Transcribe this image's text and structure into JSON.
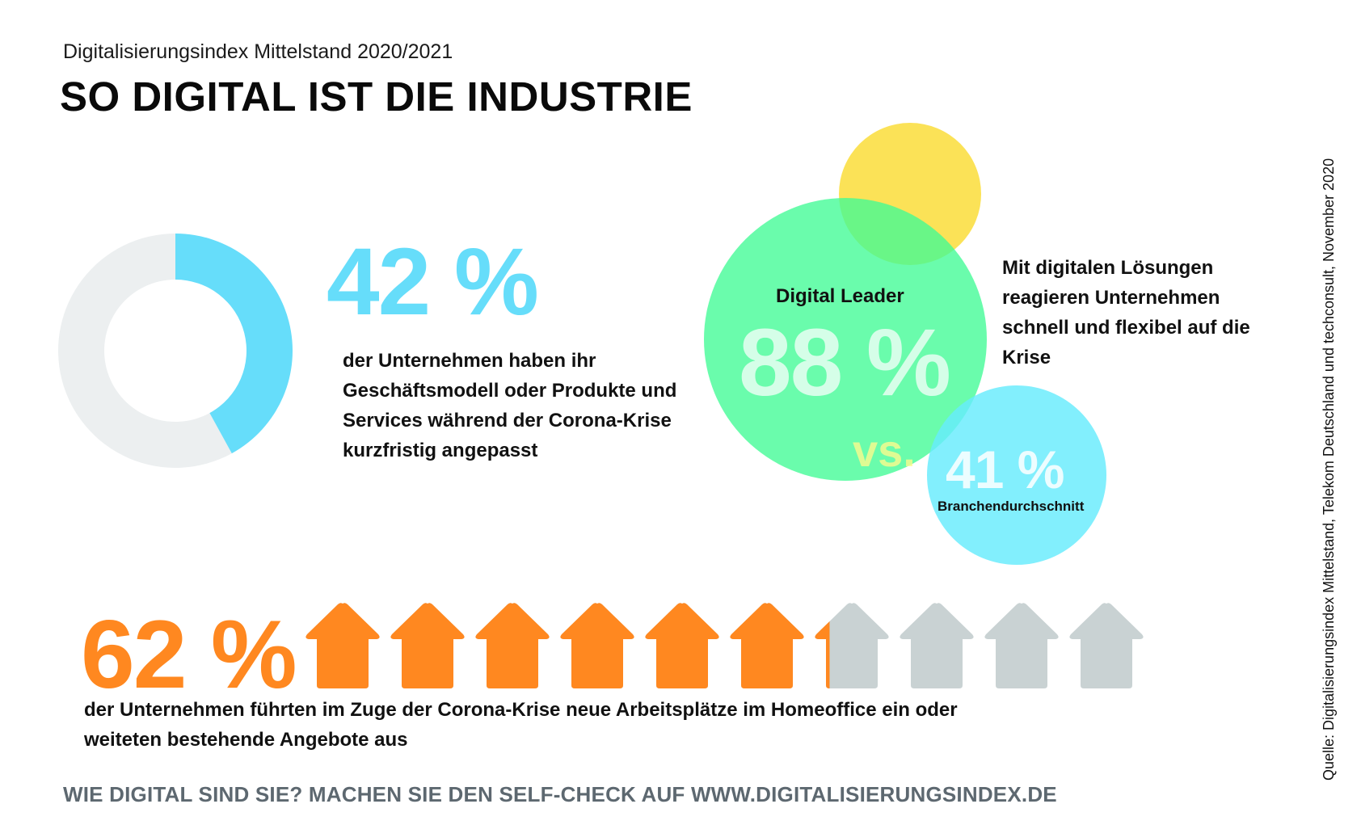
{
  "header": {
    "subtitle": "Digitalisierungsindex Mittelstand 2020/2021",
    "title": "SO DIGITAL IST DIE INDUSTRIE"
  },
  "source": "Quelle: Digitalisierungsindex Mittelstand, Telekom Deutschland und techconsult, November 2020",
  "cta": "WIE DIGITAL SIND SIE? MACHEN SIE DEN SELF-CHECK AUF WWW.DIGITALISIERUNGSINDEX.DE",
  "colors": {
    "cyan": "#66ddfa",
    "donut_rest": "#eceff0",
    "green": "#6bffb1",
    "yellow": "#fbe04e",
    "light_cyan": "#82eefc",
    "orange": "#ff8820",
    "grey": "#c9d2d3"
  },
  "chart_data": [
    {
      "type": "pie",
      "variant": "donut",
      "value": 42,
      "label": "42 %",
      "text": "der Unternehmen haben ihr Geschäftsmodell oder Produkte und Services während der Corona-Krise kurzfristig angepasst"
    },
    {
      "type": "bubble",
      "series": [
        {
          "name": "Digital Leader",
          "value": 88,
          "label": "88 %"
        },
        {
          "name": "Branchendurchschnitt",
          "value": 41,
          "label": "41 %"
        }
      ],
      "vs_label": "vs.",
      "text": "Mit digitalen Lösungen reagieren Unternehmen schnell und flexibel auf die Krise"
    },
    {
      "type": "pictogram",
      "icon": "house-icon",
      "icons_total": 10,
      "value": 62,
      "label": "62 %",
      "text": "der Unternehmen führten im Zuge der Corona-Krise neue Arbeitsplätze im Homeoffice ein oder weiteten bestehende Angebote aus"
    }
  ]
}
